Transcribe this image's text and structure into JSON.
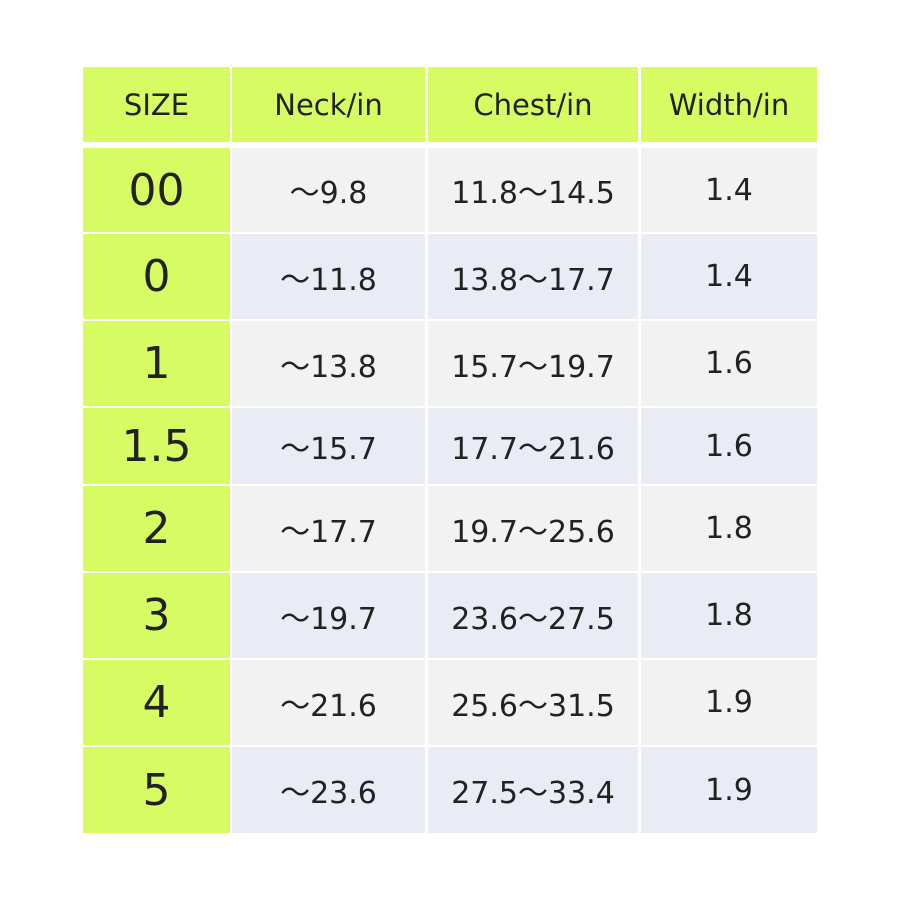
{
  "table": {
    "header": [
      "SIZE",
      "Neck/in",
      "Chest/in",
      "Width/in"
    ],
    "rows": [
      [
        "00",
        "～9.8",
        "11.8～14.5",
        "1.4"
      ],
      [
        "0",
        "～11.8",
        "13.8～17.7",
        "1.4"
      ],
      [
        "1",
        "～13.8",
        "15.7～19.7",
        "1.6"
      ],
      [
        "1.5",
        "～15.7",
        "17.7～21.6",
        "1.6"
      ],
      [
        "2",
        "～17.7",
        "19.7～25.6",
        "1.8"
      ],
      [
        "3",
        "～19.7",
        "23.6～27.5",
        "1.8"
      ],
      [
        "4",
        "～21.6",
        "25.6～31.5",
        "1.9"
      ],
      [
        "5",
        "～23.6",
        "27.5～33.4",
        "1.9"
      ]
    ]
  }
}
